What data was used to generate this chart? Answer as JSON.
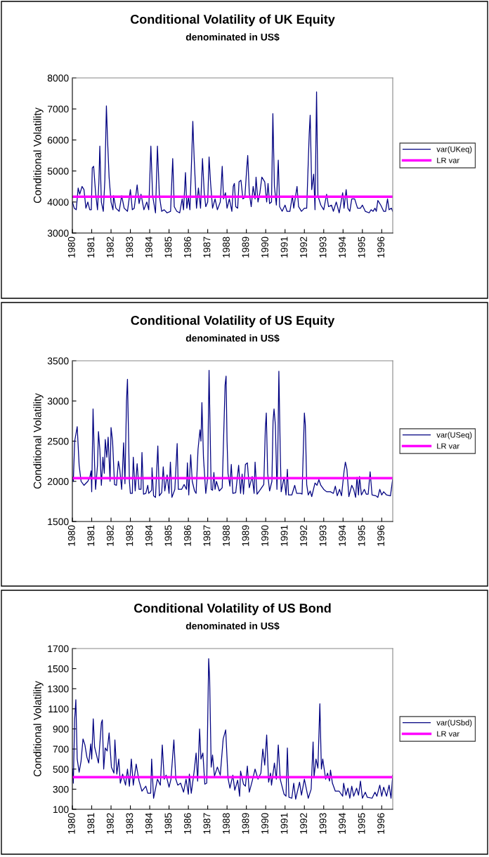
{
  "chart_data": [
    {
      "type": "line",
      "title": "Conditional Volatility of UK Equity",
      "subtitle": "denominated in US$",
      "ylabel": "Conditional Volatility",
      "xlim": [
        1980,
        1996.57
      ],
      "xticks": [
        1980,
        1981,
        1982,
        1983,
        1984,
        1985,
        1986,
        1987,
        1988,
        1989,
        1990,
        1991,
        1992,
        1993,
        1994,
        1995,
        1996
      ],
      "ylim": [
        3000,
        8000
      ],
      "yticks": [
        3000,
        4000,
        5000,
        6000,
        7000,
        8000
      ],
      "grid": false,
      "legend": "right",
      "series": [
        {
          "name": "var(UKeq)",
          "color": "#000080",
          "x": [
            1980.0,
            1980.1,
            1980.2,
            1980.3,
            1980.38,
            1980.5,
            1980.6,
            1980.7,
            1980.8,
            1980.9,
            1980.98,
            1981.03,
            1981.1,
            1981.2,
            1981.3,
            1981.37,
            1981.42,
            1981.5,
            1981.6,
            1981.68,
            1981.76,
            1981.82,
            1981.9,
            1982.0,
            1982.1,
            1982.13,
            1982.25,
            1982.42,
            1982.55,
            1982.68,
            1982.85,
            1983.0,
            1983.1,
            1983.2,
            1983.35,
            1983.45,
            1983.55,
            1983.7,
            1983.85,
            1983.95,
            1984.06,
            1984.15,
            1984.3,
            1984.4,
            1984.5,
            1984.62,
            1984.75,
            1984.9,
            1985.08,
            1985.19,
            1985.27,
            1985.4,
            1985.55,
            1985.68,
            1985.75,
            1985.85,
            1985.92,
            1986.0,
            1986.08,
            1986.18,
            1986.23,
            1986.3,
            1986.42,
            1986.52,
            1986.63,
            1986.73,
            1986.82,
            1986.9,
            1987.0,
            1987.07,
            1987.15,
            1987.25,
            1987.38,
            1987.5,
            1987.65,
            1987.75,
            1987.82,
            1987.92,
            1988.0,
            1988.12,
            1988.25,
            1988.32,
            1988.38,
            1988.45,
            1988.55,
            1988.62,
            1988.72,
            1988.82,
            1988.92,
            1989.02,
            1989.07,
            1989.15,
            1989.25,
            1989.35,
            1989.45,
            1989.5,
            1989.6,
            1989.7,
            1989.8,
            1989.95,
            1990.05,
            1990.12,
            1990.2,
            1990.3,
            1990.37,
            1990.45,
            1990.55,
            1990.65,
            1990.72,
            1990.85,
            1991.0,
            1991.1,
            1991.25,
            1991.38,
            1991.45,
            1991.62,
            1991.7,
            1991.85,
            1992.0,
            1992.12,
            1992.25,
            1992.3,
            1992.38,
            1992.48,
            1992.55,
            1992.63,
            1992.7,
            1992.85,
            1993.0,
            1993.15,
            1993.25,
            1993.4,
            1993.5,
            1993.65,
            1993.8,
            1993.98,
            1994.05,
            1994.16,
            1994.25,
            1994.35,
            1994.45,
            1994.6,
            1994.75,
            1994.9,
            1995.0,
            1995.15,
            1995.35,
            1995.45,
            1995.55,
            1995.65,
            1995.72,
            1995.8,
            1995.95,
            1996.1,
            1996.2,
            1996.3,
            1996.38,
            1996.5,
            1996.57
          ],
          "values": [
            4000,
            3800,
            3750,
            4450,
            4250,
            4500,
            4400,
            3800,
            4000,
            3750,
            3750,
            5100,
            5150,
            4300,
            3750,
            4600,
            5800,
            4000,
            3700,
            4700,
            7100,
            6000,
            4800,
            4000,
            3750,
            4200,
            3800,
            3700,
            4200,
            3800,
            3700,
            4400,
            3750,
            3800,
            4550,
            3950,
            4250,
            3750,
            4000,
            3750,
            5800,
            4200,
            3650,
            5800,
            4200,
            3700,
            3750,
            3650,
            3700,
            5400,
            3850,
            3700,
            3650,
            4100,
            3750,
            4950,
            3800,
            4150,
            3750,
            5600,
            6600,
            5400,
            3800,
            4450,
            3800,
            5400,
            4300,
            3850,
            4000,
            5450,
            4600,
            3800,
            4100,
            3750,
            4000,
            5150,
            4100,
            4300,
            3800,
            4100,
            3700,
            4500,
            4600,
            3850,
            3800,
            4650,
            4700,
            4100,
            4150,
            5100,
            5500,
            4300,
            3850,
            4500,
            4100,
            4800,
            4000,
            4300,
            4800,
            4650,
            4000,
            4600,
            3950,
            4000,
            6850,
            4500,
            3900,
            5350,
            3850,
            3700,
            3900,
            3700,
            3700,
            4200,
            3800,
            4500,
            3850,
            3700,
            3800,
            3800,
            6200,
            6800,
            4400,
            4900,
            3750,
            7550,
            4200,
            3900,
            3750,
            4250,
            3850,
            3900,
            3700,
            4000,
            3650,
            4300,
            3800,
            4400,
            3800,
            3700,
            4100,
            4100,
            3800,
            3800,
            3900,
            3700,
            3650,
            3750,
            3700,
            3800,
            3700,
            4050,
            3900,
            3700,
            3700,
            4100,
            3750,
            3800,
            3700
          ]
        }
      ],
      "ref_lines": [
        {
          "axis": "y",
          "value": 4170,
          "label": "LR var",
          "color": "#ff00ff"
        }
      ]
    },
    {
      "type": "line",
      "title": "Conditional Volatility of US Equity",
      "subtitle": "denominated in US$",
      "ylabel": "Conditional Volatility",
      "xlim": [
        1980,
        1996.57
      ],
      "xticks": [
        1980,
        1981,
        1982,
        1983,
        1984,
        1985,
        1986,
        1987,
        1988,
        1989,
        1990,
        1991,
        1992,
        1993,
        1994,
        1995,
        1996
      ],
      "ylim": [
        1500,
        3500
      ],
      "yticks": [
        1500,
        2000,
        2500,
        3000,
        3500
      ],
      "grid": false,
      "legend": "right",
      "series": [
        {
          "name": "var(USeq)",
          "color": "#000080",
          "x": [
            1980.0,
            1980.05,
            1980.12,
            1980.25,
            1980.35,
            1980.45,
            1980.6,
            1980.8,
            1980.9,
            1980.97,
            1981.0,
            1981.07,
            1981.15,
            1981.2,
            1981.3,
            1981.35,
            1981.42,
            1981.5,
            1981.58,
            1981.65,
            1981.7,
            1981.78,
            1981.85,
            1981.95,
            1982.0,
            1982.08,
            1982.18,
            1982.28,
            1982.38,
            1982.45,
            1982.55,
            1982.65,
            1982.72,
            1982.8,
            1982.85,
            1982.95,
            1983.0,
            1983.1,
            1983.15,
            1983.25,
            1983.35,
            1983.45,
            1983.55,
            1983.6,
            1983.68,
            1983.8,
            1983.9,
            1983.95,
            1984.1,
            1984.12,
            1984.2,
            1984.3,
            1984.42,
            1984.5,
            1984.62,
            1984.7,
            1984.78,
            1984.9,
            1985.0,
            1985.07,
            1985.15,
            1985.3,
            1985.42,
            1985.48,
            1985.65,
            1985.78,
            1985.9,
            1985.95,
            1986.02,
            1986.12,
            1986.2,
            1986.32,
            1986.4,
            1986.5,
            1986.6,
            1986.65,
            1986.7,
            1986.78,
            1986.9,
            1987.0,
            1987.03,
            1987.07,
            1987.12,
            1987.18,
            1987.25,
            1987.32,
            1987.38,
            1987.45,
            1987.6,
            1987.75,
            1987.9,
            1987.95,
            1988.0,
            1988.05,
            1988.15,
            1988.22,
            1988.3,
            1988.45,
            1988.6,
            1988.7,
            1988.78,
            1988.85,
            1988.95,
            1989.05,
            1989.15,
            1989.3,
            1989.4,
            1989.45,
            1989.55,
            1989.7,
            1989.9,
            1989.98,
            1990.03,
            1990.1,
            1990.2,
            1990.32,
            1990.38,
            1990.43,
            1990.5,
            1990.58,
            1990.62,
            1990.68,
            1990.75,
            1990.8,
            1990.95,
            1991.05,
            1991.12,
            1991.18,
            1991.35,
            1991.5,
            1991.6,
            1991.8,
            1991.88,
            1992.0,
            1992.05,
            1992.12,
            1992.2,
            1992.3,
            1992.38,
            1992.55,
            1992.65,
            1992.75,
            1992.85,
            1993.0,
            1993.15,
            1993.35,
            1993.5,
            1993.6,
            1993.7,
            1993.82,
            1993.92,
            1994.05,
            1994.12,
            1994.2,
            1994.3,
            1994.45,
            1994.55,
            1994.65,
            1994.72,
            1994.8,
            1994.85,
            1994.95,
            1995.1,
            1995.2,
            1995.3,
            1995.4,
            1995.5,
            1995.7,
            1995.8,
            1995.9,
            1996.0,
            1996.1,
            1996.25,
            1996.45,
            1996.57
          ],
          "values": [
            2050,
            2000,
            2500,
            2680,
            2200,
            2000,
            1950,
            2000,
            2050,
            2130,
            1870,
            2900,
            2200,
            1900,
            2200,
            2620,
            2400,
            1950,
            2300,
            2100,
            2520,
            2300,
            2550,
            2000,
            2670,
            2500,
            1960,
            1950,
            2250,
            2150,
            1900,
            2480,
            1970,
            3000,
            3270,
            2000,
            1850,
            1850,
            2300,
            1880,
            2220,
            1900,
            1900,
            2360,
            1840,
            1850,
            1950,
            1850,
            1890,
            2170,
            1820,
            1800,
            2440,
            1820,
            1860,
            2180,
            1880,
            2080,
            1850,
            2240,
            1800,
            1900,
            2470,
            1900,
            1900,
            1960,
            1900,
            2230,
            1830,
            2330,
            2000,
            1880,
            1850,
            2400,
            2640,
            2500,
            2980,
            2300,
            1850,
            2050,
            2700,
            3380,
            2700,
            1900,
            1890,
            2110,
            1900,
            2000,
            1880,
            1920,
            3200,
            3310,
            2500,
            2100,
            1940,
            2210,
            1850,
            1860,
            2200,
            1850,
            2090,
            1840,
            2210,
            2230,
            1920,
            2060,
            1850,
            2240,
            1840,
            1890,
            1960,
            2650,
            2850,
            2100,
            1880,
            2000,
            2750,
            2900,
            2700,
            1900,
            2250,
            3370,
            2400,
            1870,
            2050,
            1830,
            2150,
            1830,
            1830,
            1950,
            1850,
            1850,
            1840,
            2850,
            2700,
            1960,
            1830,
            1880,
            1810,
            1980,
            1950,
            2020,
            1950,
            1900,
            1870,
            1870,
            1850,
            1940,
            1820,
            1900,
            1820,
            2120,
            2240,
            2150,
            1810,
            1950,
            1900,
            1800,
            2050,
            1830,
            2060,
            1830,
            1900,
            1840,
            1840,
            2120,
            1830,
            1820,
            1800,
            1900,
            1830,
            1870,
            1830,
            1820,
            2030
          ]
        }
      ],
      "ref_lines": [
        {
          "axis": "y",
          "value": 2040,
          "label": "LR var",
          "color": "#ff00ff"
        }
      ]
    },
    {
      "type": "line",
      "title": "Conditional Volatility of US Bond",
      "subtitle": "denominated in US$",
      "ylabel": "Conditional Volatility",
      "xlim": [
        1980,
        1996.57
      ],
      "xticks": [
        1980,
        1981,
        1982,
        1983,
        1984,
        1985,
        1986,
        1987,
        1988,
        1989,
        1990,
        1991,
        1992,
        1993,
        1994,
        1995,
        1996
      ],
      "ylim": [
        100,
        1700
      ],
      "yticks": [
        100,
        300,
        500,
        700,
        900,
        1100,
        1300,
        1500,
        1700
      ],
      "grid": false,
      "legend": "right",
      "series": [
        {
          "name": "var(USbd)",
          "color": "#000080",
          "x": [
            1980.0,
            1980.05,
            1980.12,
            1980.18,
            1980.25,
            1980.35,
            1980.45,
            1980.55,
            1980.65,
            1980.75,
            1980.85,
            1980.95,
            1981.0,
            1981.08,
            1981.15,
            1981.35,
            1981.5,
            1981.55,
            1981.62,
            1981.7,
            1981.8,
            1981.9,
            1982.02,
            1982.15,
            1982.2,
            1982.3,
            1982.4,
            1982.48,
            1982.6,
            1982.75,
            1982.85,
            1982.95,
            1983.05,
            1983.15,
            1983.3,
            1983.45,
            1983.6,
            1983.8,
            1983.9,
            1984.05,
            1984.1,
            1984.2,
            1984.4,
            1984.55,
            1984.65,
            1984.75,
            1984.85,
            1985.0,
            1985.1,
            1985.25,
            1985.35,
            1985.45,
            1985.6,
            1985.75,
            1985.88,
            1986.0,
            1986.05,
            1986.15,
            1986.3,
            1986.4,
            1986.48,
            1986.58,
            1986.65,
            1986.75,
            1986.85,
            1986.95,
            1987.05,
            1987.1,
            1987.18,
            1987.25,
            1987.35,
            1987.5,
            1987.65,
            1987.8,
            1987.93,
            1988.05,
            1988.15,
            1988.3,
            1988.4,
            1988.55,
            1988.65,
            1988.7,
            1988.85,
            1988.95,
            1989.05,
            1989.15,
            1989.3,
            1989.45,
            1989.6,
            1989.75,
            1989.85,
            1989.95,
            1990.05,
            1990.15,
            1990.25,
            1990.3,
            1990.45,
            1990.55,
            1990.65,
            1990.75,
            1990.95,
            1991.05,
            1991.12,
            1991.2,
            1991.35,
            1991.45,
            1991.55,
            1991.75,
            1991.85,
            1992.0,
            1992.2,
            1992.35,
            1992.45,
            1992.5,
            1992.6,
            1992.7,
            1992.8,
            1992.88,
            1992.95,
            1993.1,
            1993.2,
            1993.3,
            1993.35,
            1993.45,
            1993.6,
            1993.8,
            1993.98,
            1994.03,
            1994.15,
            1994.25,
            1994.35,
            1994.45,
            1994.55,
            1994.7,
            1994.8,
            1994.9,
            1995.0,
            1995.15,
            1995.25,
            1995.5,
            1995.65,
            1995.75,
            1995.9,
            1996.0,
            1996.1,
            1996.25,
            1996.38,
            1996.48,
            1996.57
          ],
          "values": [
            500,
            360,
            1000,
            1190,
            600,
            470,
            580,
            800,
            740,
            620,
            560,
            750,
            600,
            1000,
            720,
            560,
            960,
            990,
            500,
            710,
            680,
            860,
            520,
            460,
            790,
            450,
            600,
            360,
            450,
            340,
            500,
            330,
            600,
            340,
            550,
            380,
            280,
            330,
            260,
            260,
            600,
            210,
            400,
            340,
            740,
            400,
            440,
            320,
            400,
            790,
            400,
            340,
            360,
            270,
            400,
            250,
            450,
            260,
            480,
            660,
            380,
            900,
            600,
            660,
            350,
            360,
            1600,
            1400,
            520,
            640,
            430,
            520,
            440,
            800,
            890,
            410,
            310,
            440,
            290,
            390,
            230,
            480,
            350,
            330,
            530,
            270,
            380,
            500,
            400,
            460,
            700,
            540,
            840,
            370,
            460,
            340,
            560,
            400,
            740,
            400,
            250,
            230,
            710,
            220,
            210,
            360,
            200,
            370,
            240,
            400,
            210,
            300,
            770,
            420,
            600,
            510,
            1150,
            500,
            600,
            400,
            460,
            380,
            490,
            360,
            280,
            280,
            230,
            360,
            240,
            310,
            210,
            330,
            230,
            310,
            240,
            380,
            210,
            270,
            220,
            210,
            270,
            230,
            340,
            230,
            320,
            230,
            340,
            210,
            440
          ]
        }
      ],
      "ref_lines": [
        {
          "axis": "y",
          "value": 420,
          "label": "LR var",
          "color": "#ff00ff"
        }
      ]
    }
  ]
}
